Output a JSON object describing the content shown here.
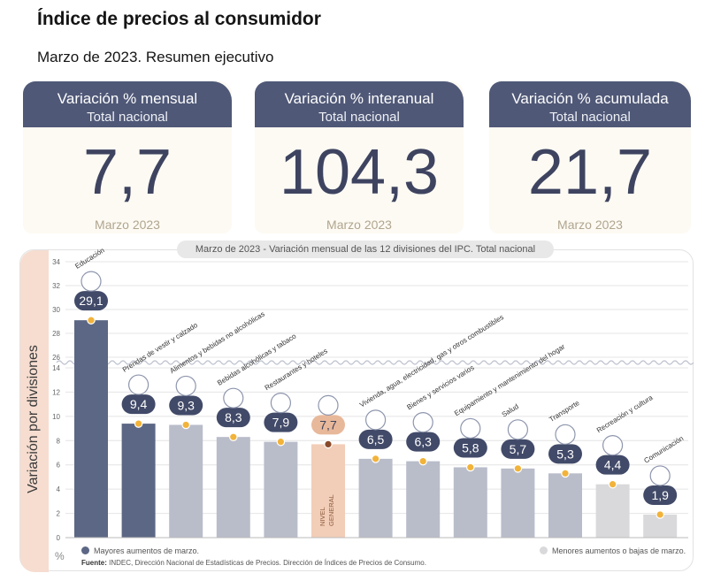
{
  "header": {
    "title": "Índice de precios al consumidor",
    "subtitle": "Marzo de 2023. Resumen ejecutivo"
  },
  "cards": [
    {
      "title": "Variación % mensual",
      "subtitle": "Total nacional",
      "value": "7,7",
      "date": "Marzo 2023"
    },
    {
      "title": "Variación % interanual",
      "subtitle": "Total nacional",
      "value": "104,3",
      "date": "Marzo 2023"
    },
    {
      "title": "Variación % acumulada",
      "subtitle": "Total nacional",
      "value": "21,7",
      "date": "Marzo 2023"
    }
  ],
  "chart_header": {
    "period": "Marzo de 2023",
    "separator": "-",
    "text": "Variación mensual de las 12 divisiones del IPC. Total nacional"
  },
  "legend": {
    "high": "Mayores aumentos de marzo.",
    "low": "Menores aumentos o bajas de marzo."
  },
  "source": {
    "label": "Fuente:",
    "text": "INDEC, Dirección Nacional de Estadísticas de Precios. Dirección de Índices de Precios de Consumo."
  },
  "chart_data": {
    "type": "bar",
    "title": "Variación mensual de las 12 divisiones del IPC. Total nacional",
    "ylabel": "Variación por divisiones",
    "unit": "%",
    "axis_break": [
      14,
      26
    ],
    "ylim": [
      0,
      34
    ],
    "yticks": [
      0,
      2,
      4,
      6,
      8,
      10,
      12,
      14,
      26,
      28,
      30,
      32,
      34
    ],
    "categories": [
      "Educación",
      "Prendas de vestir y calzado",
      "Alimentos y bebidas no alcohólicas",
      "Bebidas alcohólicas y tabaco",
      "Restaurantes y hoteles",
      "NIVEL GENERAL",
      "Vivienda, agua, electricidad, gas y otros combustibles",
      "Bienes y servicios varios",
      "Equipamiento y mantenimiento del hogar",
      "Salud",
      "Transporte",
      "Recreación y cultura",
      "Comunicación"
    ],
    "values": [
      29.1,
      9.4,
      9.3,
      8.3,
      7.9,
      7.7,
      6.5,
      6.3,
      5.8,
      5.7,
      5.3,
      4.4,
      1.9
    ],
    "value_labels": [
      "29,1",
      "9,4",
      "9,3",
      "8,3",
      "7,9",
      "7,7",
      "6,5",
      "6,3",
      "5,8",
      "5,7",
      "5,3",
      "4,4",
      "1,9"
    ],
    "groups": [
      "high",
      "high",
      "mid",
      "mid",
      "mid",
      "general",
      "mid",
      "mid",
      "mid",
      "mid",
      "mid",
      "low",
      "low"
    ],
    "colors": {
      "high": "#5c6785",
      "mid": "#b9bdca",
      "low": "#d9d9db",
      "general": "#f2cdb7",
      "badge": "#414a68",
      "badge_general": "#e8b89a",
      "dot": "#f2b33a",
      "dot_general": "#8a4a2a"
    }
  }
}
